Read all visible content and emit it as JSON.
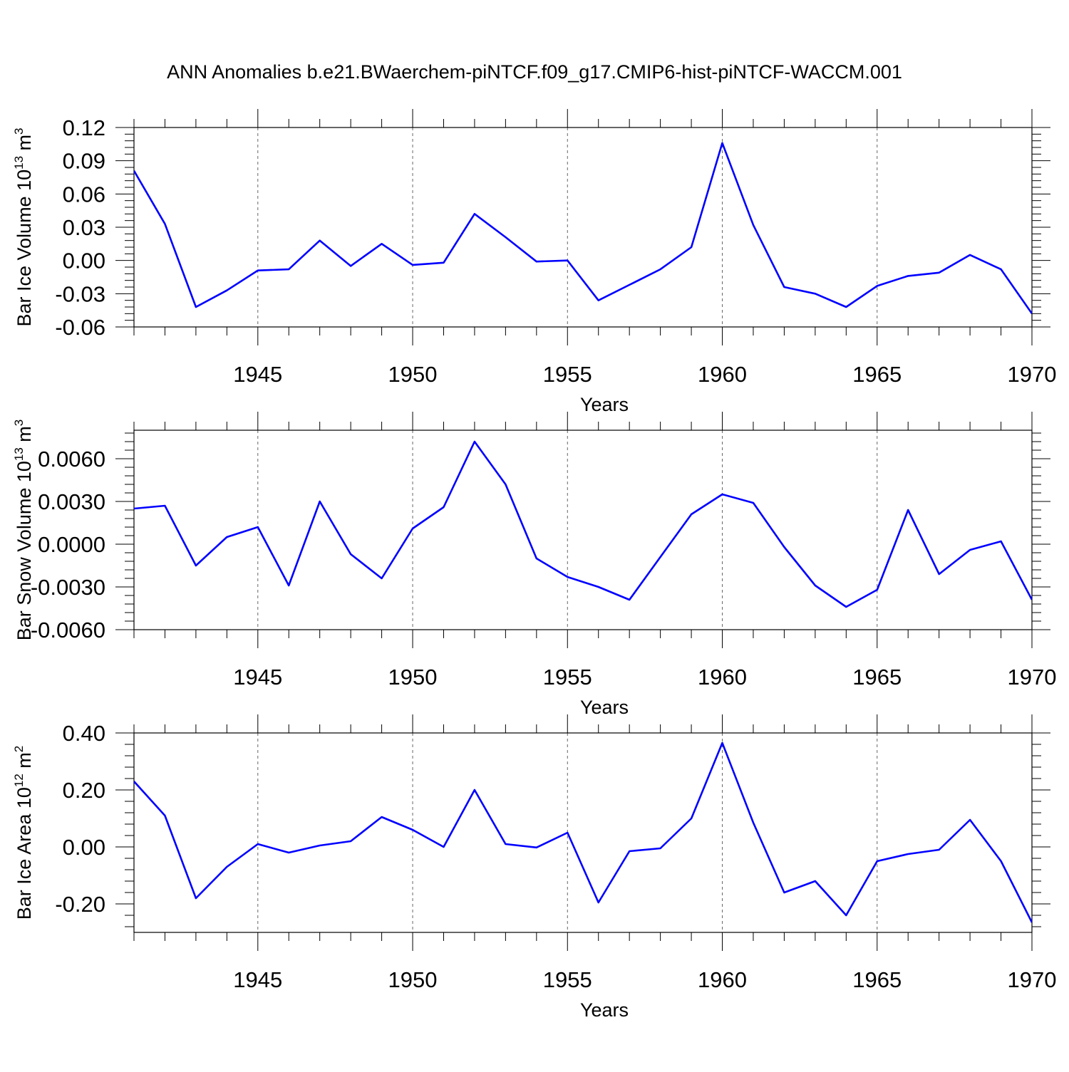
{
  "title": "ANN Anomalies b.e21.BWaerchem-piNTCF.f09_g17.CMIP6-hist-piNTCF-WACCM.001",
  "line_color": "#0000ff",
  "chart_data": [
    {
      "type": "line",
      "ylabel_main": "Bar Ice Volume 10",
      "ylabel_exp": "13",
      "ylabel_unit": " m",
      "ylabel_unit_exp": "3",
      "xlabel": "Years",
      "xlim": [
        1941,
        1970
      ],
      "ylim": [
        -0.06,
        0.12
      ],
      "yticks": [
        -0.06,
        -0.03,
        0.0,
        0.03,
        0.06,
        0.09,
        0.12
      ],
      "ytick_labels": [
        "-0.06",
        "-0.03",
        "0.00",
        "0.03",
        "0.06",
        "0.09",
        "0.12"
      ],
      "xticks": [
        1945,
        1950,
        1955,
        1960,
        1965,
        1970
      ],
      "xtick_labels": [
        "1945",
        "1950",
        "1955",
        "1960",
        "1965",
        "1970"
      ],
      "x": [
        1941,
        1942,
        1943,
        1944,
        1945,
        1946,
        1947,
        1948,
        1949,
        1950,
        1951,
        1952,
        1953,
        1954,
        1955,
        1956,
        1957,
        1958,
        1959,
        1960,
        1961,
        1962,
        1963,
        1964,
        1965,
        1966,
        1967,
        1968,
        1969,
        1970
      ],
      "values": [
        0.081,
        0.033,
        -0.042,
        -0.027,
        -0.009,
        -0.008,
        0.018,
        -0.005,
        0.015,
        -0.004,
        -0.002,
        0.042,
        0.021,
        -0.001,
        0.0,
        -0.036,
        -0.022,
        -0.008,
        0.012,
        0.106,
        0.032,
        -0.024,
        -0.03,
        -0.042,
        -0.023,
        -0.014,
        -0.011,
        0.005,
        -0.008,
        -0.048
      ]
    },
    {
      "type": "line",
      "ylabel_main": "Bar Snow Volume 10",
      "ylabel_exp": "13",
      "ylabel_unit": " m",
      "ylabel_unit_exp": "3",
      "xlabel": "Years",
      "xlim": [
        1941,
        1970
      ],
      "ylim": [
        -0.006,
        0.008
      ],
      "yticks": [
        -0.006,
        -0.003,
        0.0,
        0.003,
        0.006
      ],
      "ytick_labels": [
        "-0.0060",
        "-0.0030",
        "0.0000",
        "0.0030",
        "0.0060"
      ],
      "xticks": [
        1945,
        1950,
        1955,
        1960,
        1965,
        1970
      ],
      "xtick_labels": [
        "1945",
        "1950",
        "1955",
        "1960",
        "1965",
        "1970"
      ],
      "x": [
        1941,
        1942,
        1943,
        1944,
        1945,
        1946,
        1947,
        1948,
        1949,
        1950,
        1951,
        1952,
        1953,
        1954,
        1955,
        1956,
        1957,
        1958,
        1959,
        1960,
        1961,
        1962,
        1963,
        1964,
        1965,
        1966,
        1967,
        1968,
        1969,
        1970
      ],
      "values": [
        0.0025,
        0.0027,
        -0.0015,
        0.0005,
        0.0012,
        -0.0029,
        0.003,
        -0.0007,
        -0.0024,
        0.0011,
        0.0026,
        0.0072,
        0.0042,
        -0.001,
        -0.0023,
        -0.003,
        -0.0039,
        -0.0009,
        0.0021,
        0.0035,
        0.0029,
        -0.0002,
        -0.0029,
        -0.0044,
        -0.0032,
        0.0024,
        -0.0021,
        -0.0004,
        0.0002,
        -0.0039
      ]
    },
    {
      "type": "line",
      "ylabel_main": "Bar Ice Area 10",
      "ylabel_exp": "12",
      "ylabel_unit": " m",
      "ylabel_unit_exp": "2",
      "xlabel": "Years",
      "xlim": [
        1941,
        1970
      ],
      "ylim": [
        -0.3,
        0.4
      ],
      "yticks": [
        -0.2,
        0.0,
        0.2,
        0.4
      ],
      "ytick_labels": [
        "-0.20",
        "0.00",
        "0.20",
        "0.40"
      ],
      "xticks": [
        1945,
        1950,
        1955,
        1960,
        1965,
        1970
      ],
      "xtick_labels": [
        "1945",
        "1950",
        "1955",
        "1960",
        "1965",
        "1970"
      ],
      "x": [
        1941,
        1942,
        1943,
        1944,
        1945,
        1946,
        1947,
        1948,
        1949,
        1950,
        1951,
        1952,
        1953,
        1954,
        1955,
        1956,
        1957,
        1958,
        1959,
        1960,
        1961,
        1962,
        1963,
        1964,
        1965,
        1966,
        1967,
        1968,
        1969,
        1970
      ],
      "values": [
        0.23,
        0.11,
        -0.18,
        -0.07,
        0.01,
        -0.02,
        0.005,
        0.02,
        0.105,
        0.06,
        0.0,
        0.2,
        0.01,
        -0.002,
        0.05,
        -0.195,
        -0.015,
        -0.005,
        0.1,
        0.365,
        0.085,
        -0.16,
        -0.12,
        -0.24,
        -0.05,
        -0.025,
        -0.01,
        0.095,
        -0.05,
        -0.265
      ]
    }
  ]
}
